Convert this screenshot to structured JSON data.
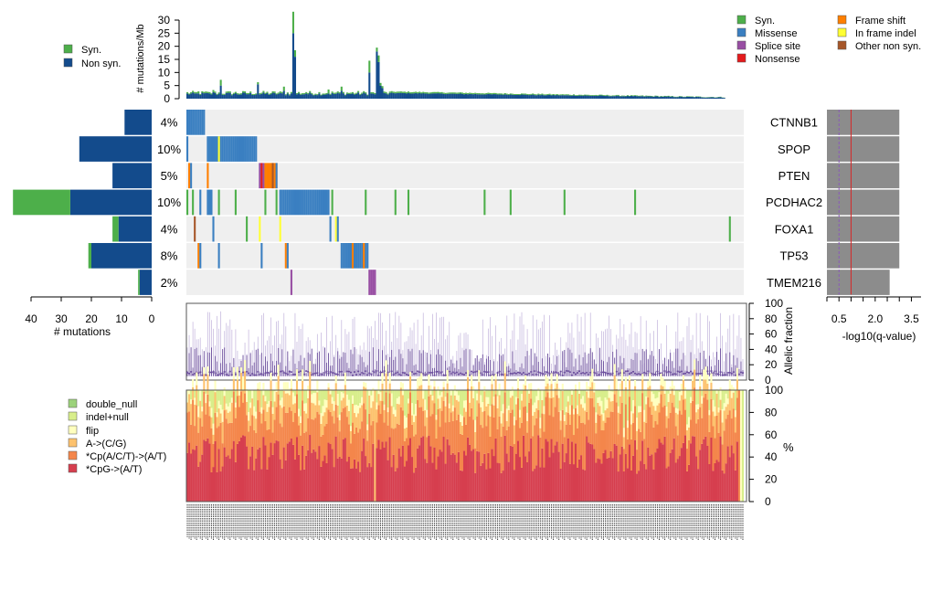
{
  "chart_data": {
    "type": "bar",
    "n_samples": 300,
    "colors": {
      "syn": "#4daf4a",
      "nonsyn": "#134b8c",
      "missense": "#3a7fc1",
      "splice": "#984ea3",
      "nonsense": "#e41a1c",
      "frameshift": "#ff7f00",
      "inframe": "#ffff33",
      "othernonsyn": "#a65628",
      "heatmap_bg": "#efefef",
      "qbar": "#8c8c8c",
      "af_line": "#c9bce0",
      "af_dot": "#6a4c9c",
      "sig": [
        "#d63e4e",
        "#f4864b",
        "#fdc26e",
        "#ffffbf",
        "#d8ee8b",
        "#9cd27b"
      ]
    },
    "top_bar": {
      "ylabel": "# mutations/Mb",
      "ticks": [
        0,
        5,
        10,
        15,
        20,
        25,
        30
      ],
      "ylim": [
        0,
        30
      ],
      "legend": [
        "Syn.",
        "Non syn."
      ],
      "spikes": [
        {
          "sample": 6,
          "nonsyn": 2,
          "syn": 0.8
        },
        {
          "sample": 12,
          "nonsyn": 2,
          "syn": 0.5
        },
        {
          "sample": 14,
          "nonsyn": 2.5,
          "syn": 0.8
        },
        {
          "sample": 18,
          "nonsyn": 5,
          "syn": 2.2
        },
        {
          "sample": 38,
          "nonsyn": 5.5,
          "syn": 0.8
        },
        {
          "sample": 52,
          "nonsyn": 3,
          "syn": 1.6
        },
        {
          "sample": 57,
          "nonsyn": 25,
          "syn": 8.2
        },
        {
          "sample": 58,
          "nonsyn": 16,
          "syn": 2.5
        },
        {
          "sample": 64,
          "nonsyn": 2,
          "syn": 0.5
        },
        {
          "sample": 76,
          "nonsyn": 2,
          "syn": 1.5
        },
        {
          "sample": 83,
          "nonsyn": 3,
          "syn": 1.6
        },
        {
          "sample": 98,
          "nonsyn": 10,
          "syn": 4.5
        },
        {
          "sample": 102,
          "nonsyn": 18,
          "syn": 1.5
        },
        {
          "sample": 103,
          "nonsyn": 14,
          "syn": 2.5
        },
        {
          "sample": 104,
          "nonsyn": 5,
          "syn": 1
        },
        {
          "sample": 105,
          "nonsyn": 4,
          "syn": 0.8
        }
      ]
    },
    "mutation_legend": [
      "Syn.",
      "Missense",
      "Splice site",
      "Nonsense",
      "Frame shift",
      "In frame indel",
      "Other non syn."
    ],
    "genes": [
      {
        "name": "CTNNB1",
        "pct": "4%",
        "nonsyn": 9,
        "syn": 0,
        "q": 3.0
      },
      {
        "name": "SPOP",
        "pct": "10%",
        "nonsyn": 24,
        "syn": 0,
        "q": 3.0
      },
      {
        "name": "PTEN",
        "pct": "5%",
        "nonsyn": 13,
        "syn": 0,
        "q": 3.0
      },
      {
        "name": "PCDHAC2",
        "pct": "10%",
        "nonsyn": 27,
        "syn": 19,
        "q": 3.0
      },
      {
        "name": "FOXA1",
        "pct": "4%",
        "nonsyn": 11,
        "syn": 2,
        "q": 3.0
      },
      {
        "name": "TP53",
        "pct": "8%",
        "nonsyn": 20,
        "syn": 1,
        "q": 3.0
      },
      {
        "name": "TMEM216",
        "pct": "2%",
        "nonsyn": 4,
        "syn": 0.5,
        "q": 2.6
      }
    ],
    "left_bar": {
      "xlabel": "# mutations",
      "ticks": [
        40,
        30,
        20,
        10,
        0
      ],
      "xlim": [
        0,
        46
      ]
    },
    "qvalue": {
      "xlabel": "-log10(q-value)",
      "ticks": [
        "0.5",
        "2.0",
        "3.5"
      ],
      "xlim": [
        0,
        3.9
      ],
      "dashed_line": 0.5,
      "solid_line": 1.0
    },
    "allelic": {
      "ylabel": "Allelic fraction",
      "ticks": [
        0,
        20,
        40,
        60,
        80,
        100
      ],
      "ylim": [
        0,
        100
      ]
    },
    "signature": {
      "ylabel": "%",
      "ticks": [
        0,
        20,
        40,
        60,
        80,
        100
      ],
      "ylim": [
        0,
        100
      ],
      "legend": [
        "double_null",
        "indel+null",
        "flip",
        "A->(C/G)",
        "*Cp(A/C/T)->(A/T)",
        "*CpG->(A/T)"
      ]
    }
  }
}
